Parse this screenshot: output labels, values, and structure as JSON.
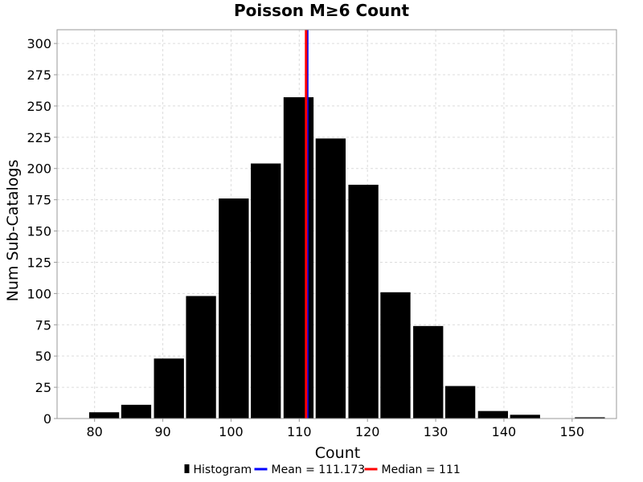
{
  "chart_data": {
    "type": "bar",
    "title": "Poisson M≥6 Count",
    "xlabel": "Count",
    "ylabel": "Num Sub-Catalogs",
    "xlim": [
      74.5,
      156.5
    ],
    "ylim": [
      0,
      311
    ],
    "x_ticks": [
      80,
      90,
      100,
      110,
      120,
      130,
      140,
      150
    ],
    "y_ticks": [
      0,
      25,
      50,
      75,
      100,
      125,
      150,
      175,
      200,
      225,
      250,
      275,
      300
    ],
    "grid": true,
    "bin_width": 4.75,
    "series": [
      {
        "name": "Histogram",
        "color": "#000000",
        "bins": [
          {
            "center": 81.4,
            "value": 5
          },
          {
            "center": 86.1,
            "value": 11
          },
          {
            "center": 90.9,
            "value": 48
          },
          {
            "center": 95.6,
            "value": 98
          },
          {
            "center": 100.4,
            "value": 176
          },
          {
            "center": 105.1,
            "value": 204
          },
          {
            "center": 109.9,
            "value": 257
          },
          {
            "center": 114.6,
            "value": 224
          },
          {
            "center": 119.4,
            "value": 187
          },
          {
            "center": 124.1,
            "value": 101
          },
          {
            "center": 128.9,
            "value": 74
          },
          {
            "center": 133.6,
            "value": 26
          },
          {
            "center": 138.4,
            "value": 6
          },
          {
            "center": 143.1,
            "value": 3
          },
          {
            "center": 147.9,
            "value": 0
          },
          {
            "center": 152.6,
            "value": 1
          }
        ]
      }
    ],
    "lines": [
      {
        "name": "Mean = 111.173",
        "x": 111.173,
        "color": "#0000ff"
      },
      {
        "name": "Median = 111",
        "x": 111,
        "color": "#ff0000"
      }
    ],
    "legend": {
      "placement": "bottom-center",
      "items": [
        {
          "label": "Histogram",
          "color": "#000000",
          "symbol": "bar"
        },
        {
          "label": "Mean = 111.173",
          "color": "#0000ff",
          "symbol": "line"
        },
        {
          "label": "Median = 111",
          "color": "#ff0000",
          "symbol": "line"
        }
      ]
    }
  }
}
